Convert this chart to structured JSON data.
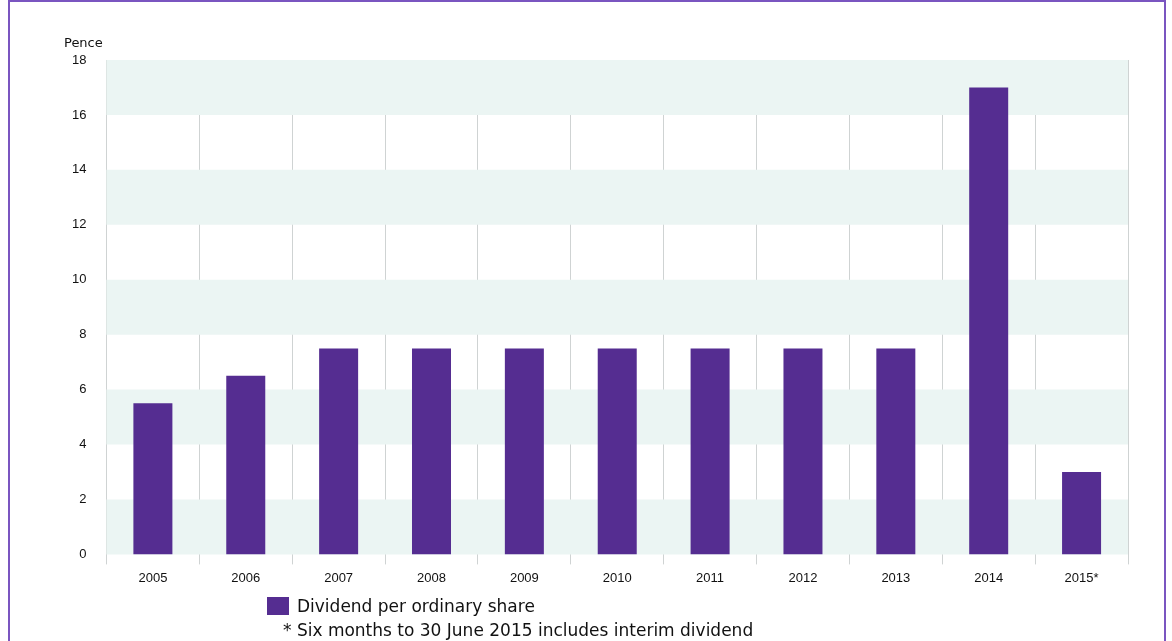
{
  "chart_data": {
    "type": "bar",
    "ylabel": "Pence",
    "categories": [
      "2005",
      "2006",
      "2007",
      "2008",
      "2009",
      "2010",
      "2011",
      "2012",
      "2013",
      "2014",
      "2015*"
    ],
    "series": [
      {
        "name": "Dividend per ordinary share",
        "color": "#552d91",
        "values": [
          5.5,
          6.5,
          7.5,
          7.5,
          7.5,
          7.5,
          7.5,
          7.5,
          7.5,
          17,
          3
        ]
      }
    ],
    "ylim": [
      0,
      18
    ],
    "yticks": [
      0,
      2,
      4,
      6,
      8,
      10,
      12,
      14,
      16,
      18
    ],
    "grid": true,
    "legend": "bottom",
    "annotations": [
      "* Six months to 30 June 2015 includes interim dividend"
    ]
  }
}
